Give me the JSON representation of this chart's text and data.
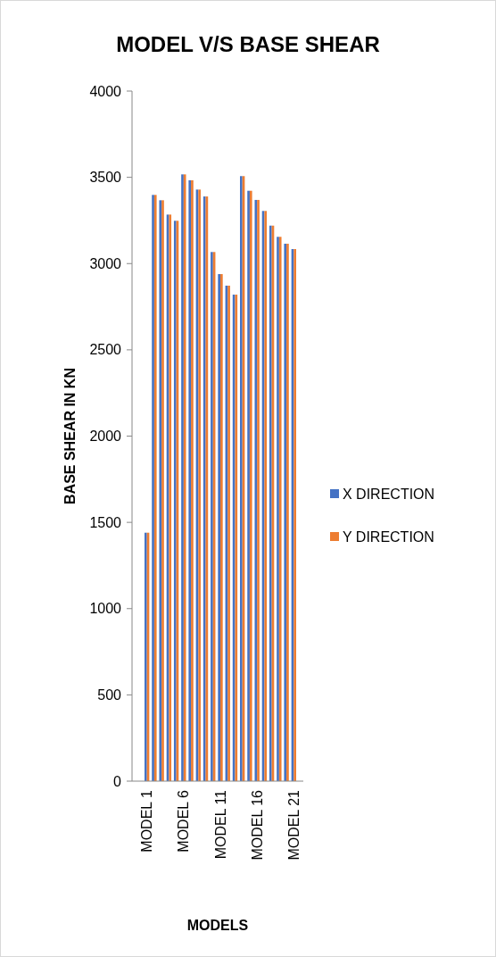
{
  "chart_data": {
    "type": "bar",
    "title": "MODEL V/S BASE SHEAR",
    "xlabel": "MODELS",
    "ylabel": "BASE SHEAR IN KN",
    "categories": [
      "MODEL 1",
      null,
      null,
      null,
      null,
      "MODEL 6",
      null,
      null,
      null,
      null,
      "MODEL 11",
      null,
      null,
      null,
      null,
      "MODEL 16",
      null,
      null,
      null,
      null,
      "MODEL 21"
    ],
    "series": [
      {
        "name": "X DIRECTION",
        "color": "#4472c4",
        "values": [
          1440,
          3398,
          3367,
          3284,
          3248,
          3517,
          3483,
          3429,
          3389,
          3067,
          2939,
          2872,
          2820,
          3507,
          3422,
          3369,
          3305,
          3220,
          3155,
          3115,
          3084
        ]
      },
      {
        "name": "Y DIRECTION",
        "color": "#ed7d31",
        "values": [
          1440,
          3398,
          3367,
          3284,
          3248,
          3517,
          3483,
          3429,
          3389,
          3067,
          2939,
          2872,
          2820,
          3507,
          3422,
          3369,
          3305,
          3220,
          3155,
          3115,
          3084
        ]
      }
    ],
    "ylim": [
      0,
      4000
    ],
    "yticks": [
      0,
      500,
      1000,
      1500,
      2000,
      2500,
      3000,
      3500,
      4000
    ],
    "grid": false,
    "legend": "right"
  }
}
